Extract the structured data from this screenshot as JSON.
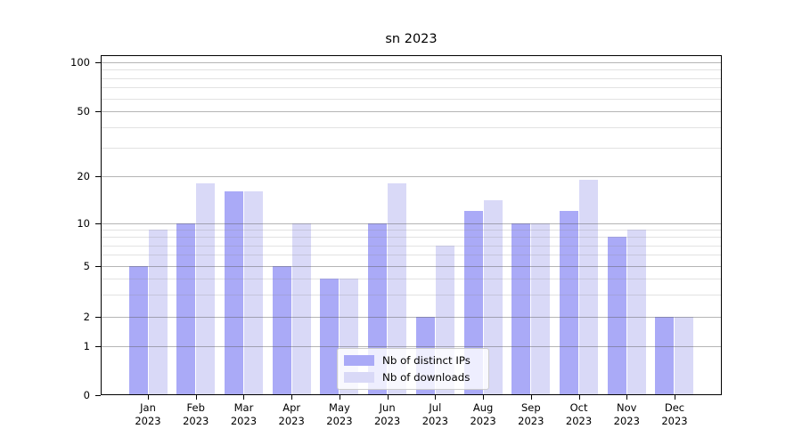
{
  "chart_data": {
    "type": "bar",
    "title": "sn 2023",
    "categories": [
      "Jan",
      "Feb",
      "Mar",
      "Apr",
      "May",
      "Jun",
      "Jul",
      "Aug",
      "Sep",
      "Oct",
      "Nov",
      "Dec"
    ],
    "x_year_label": "2023",
    "series": [
      {
        "name": "Nb of distinct IPs",
        "color": "#aaaaf7",
        "values": [
          5,
          10,
          16,
          5,
          4,
          10,
          2,
          12,
          10,
          12,
          8,
          2
        ]
      },
      {
        "name": "Nb of downloads",
        "color": "#d9d9f7",
        "values": [
          9,
          18,
          16,
          10,
          4,
          18,
          7,
          14,
          10,
          19,
          9,
          2
        ]
      }
    ],
    "yaxis": {
      "scale": "symlog",
      "major_ticks": [
        0,
        1,
        2,
        5,
        10,
        20,
        50,
        100
      ],
      "minor_ticks": [
        3,
        4,
        6,
        7,
        8,
        9,
        30,
        40,
        60,
        70,
        80,
        90
      ],
      "range": [
        0,
        112
      ]
    },
    "grid": "on",
    "legend_position": "lower center"
  },
  "legend": {
    "items": [
      {
        "label": "Nb of distinct IPs"
      },
      {
        "label": "Nb of downloads"
      }
    ]
  },
  "colors": {
    "bar_dark": "#aaaaf7",
    "bar_light": "#d9d9f7",
    "grid_major": "#b5b5b5",
    "grid_minor": "#e6e6e6",
    "spine": "#000000"
  }
}
